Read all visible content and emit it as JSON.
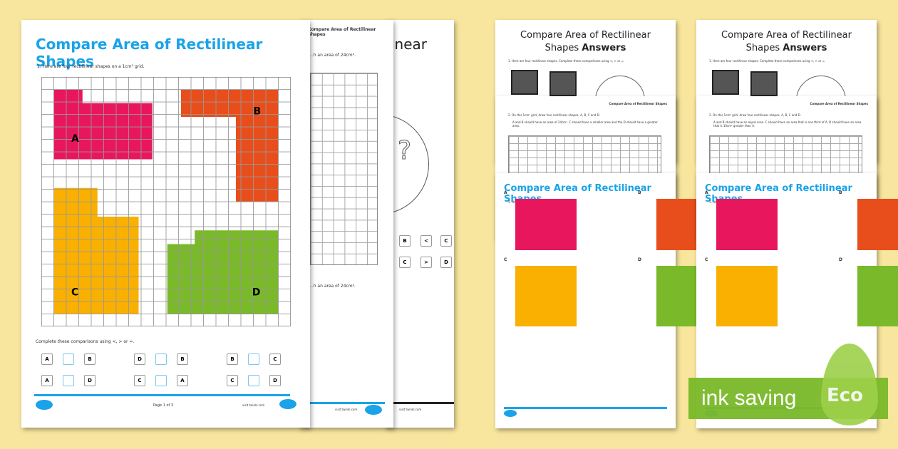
{
  "main_sheet": {
    "title": "Compare Area of Rectilinear Shapes",
    "question": "1.  Here are four rectilinear shapes on a 1cm² grid.",
    "shapes": [
      {
        "label": "A",
        "color": "#e8175d"
      },
      {
        "label": "B",
        "color": "#e84e1b"
      },
      {
        "label": "C",
        "color": "#f9b000"
      },
      {
        "label": "D",
        "color": "#7ab929"
      }
    ],
    "instruction": "Complete these comparisons using <, > or =.",
    "comparisons": [
      [
        "A",
        "B"
      ],
      [
        "D",
        "B"
      ],
      [
        "B",
        "C"
      ],
      [
        "A",
        "D"
      ],
      [
        "C",
        "A"
      ],
      [
        "C",
        "D"
      ]
    ],
    "page": "Page 1 of 3",
    "website": "visit twinkl.com"
  },
  "second_sheet": {
    "header": "Compare Area of Rectilinear Shapes",
    "text1": "...h an area of 24cm².",
    "text2": "...h an area of 24cm².",
    "website": "visit twinkl.com"
  },
  "third_sheet": {
    "title_fragment": "inear",
    "boxes": [
      [
        "B",
        "<",
        "C"
      ],
      [
        "C",
        ">",
        "D"
      ]
    ],
    "website": "visit twinkl.com"
  },
  "answer_sets": [
    {
      "answers_title_1": "Compare Area of Rectilinear",
      "answers_title_2": "Shapes",
      "answers_bold": "Answers",
      "q1": "1.  Here are four rectilinear shapes. Complete these comparisons using <, > or =.",
      "header": "Compare Area of Rectilinear Shapes",
      "q2": "2.  On this 1cm² grid, draw four rectilinear shapes, A, B, C and D.",
      "q2b": "A and B should have an area of 24cm². C should have a smaller area and the D should have a greater area.",
      "title": "Compare Area of Rectilinear Shapes",
      "q": "1.  Here are four rectilinear shapes.",
      "labels": [
        "A",
        "B",
        "C",
        "D"
      ]
    },
    {
      "answers_title_1": "Compare Area of Rectilinear",
      "answers_title_2": "Shapes",
      "answers_bold": "Answers",
      "q1": "1.  Here are four rectilinear shapes. Complete these comparisons using <, > or =.",
      "header": "Compare Area of Rectilinear Shapes",
      "q2": "2.  On this 1cm² grid, draw four rectilinear shapes, A, B, C and D.",
      "q2b": "A and B should have an equal area. C should have an area that is one third of A. D should have an area that is 10cm² greater than A.",
      "title": "Compare Area of Rectilinear Shapes",
      "q": "1.  Here are four rectilinear shapes.",
      "labels": [
        "A",
        "B",
        "C",
        "D"
      ]
    }
  ],
  "eco_badge": {
    "text": "ink saving",
    "leaf": "Eco",
    "color": "#7ab929"
  }
}
